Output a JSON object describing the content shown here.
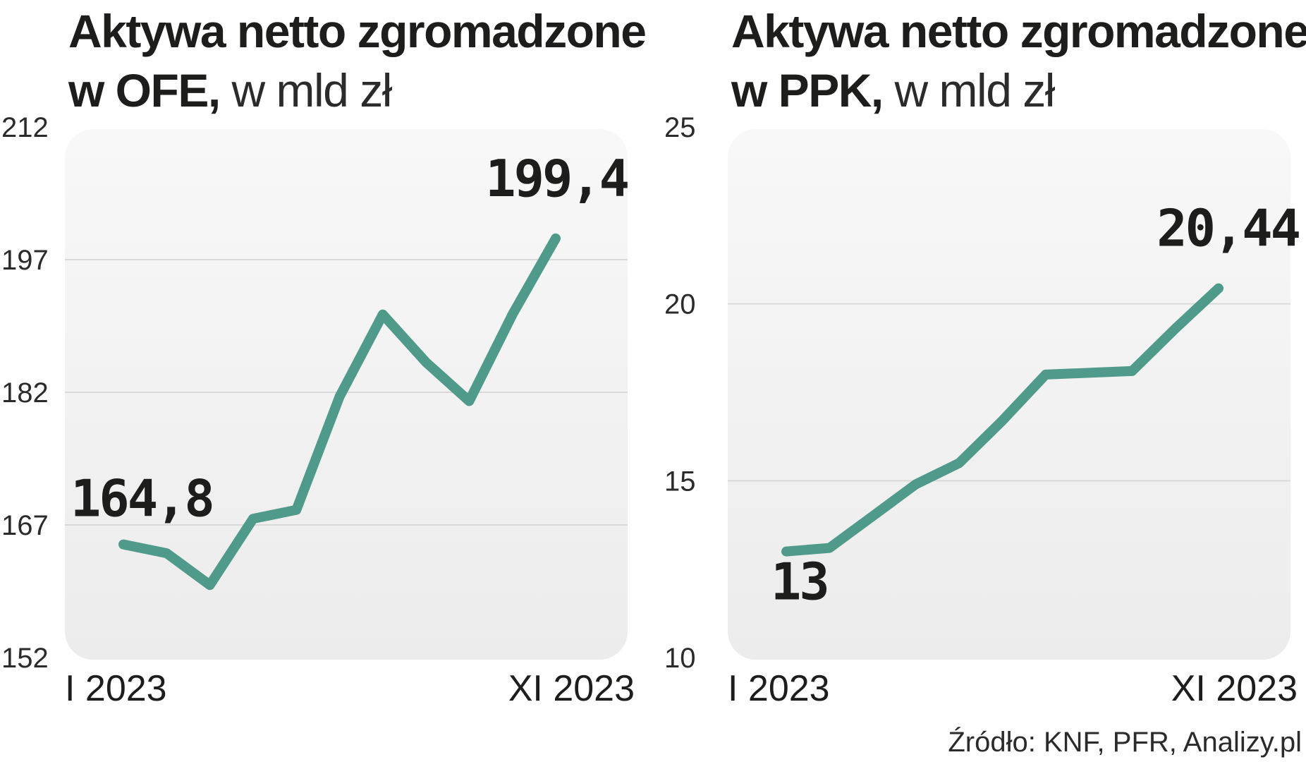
{
  "source": "Źródło: KNF, PFR, Analizy.pl",
  "line_color": "#4f9a8a",
  "chart_data": [
    {
      "type": "line",
      "title_bold_1": "Aktywa netto zgromadzone",
      "title_bold_2": "w OFE,",
      "title_thin": " w mld zł",
      "ylim": [
        152,
        212
      ],
      "yticks": [
        212,
        197,
        182,
        167,
        152
      ],
      "x_first_label": "I 2023",
      "x_last_label": "XI 2023",
      "values": [
        164.8,
        163.8,
        160.2,
        167.7,
        168.7,
        181.5,
        190.8,
        185.4,
        181.0,
        190.8,
        199.4
      ],
      "first_label": "164,8",
      "last_label": "199,4"
    },
    {
      "type": "line",
      "title_bold_1": "Aktywa netto zgromadzone",
      "title_bold_2": "w PPK,",
      "title_thin": " w mld zł",
      "ylim": [
        10,
        25
      ],
      "yticks": [
        25,
        20,
        15,
        10
      ],
      "x_first_label": "I 2023",
      "x_last_label": "XI 2023",
      "values": [
        13.0,
        13.1,
        14.0,
        14.9,
        15.5,
        16.7,
        18.0,
        18.05,
        18.1,
        19.3,
        20.44
      ],
      "first_label": "13",
      "last_label": "20,44"
    }
  ]
}
